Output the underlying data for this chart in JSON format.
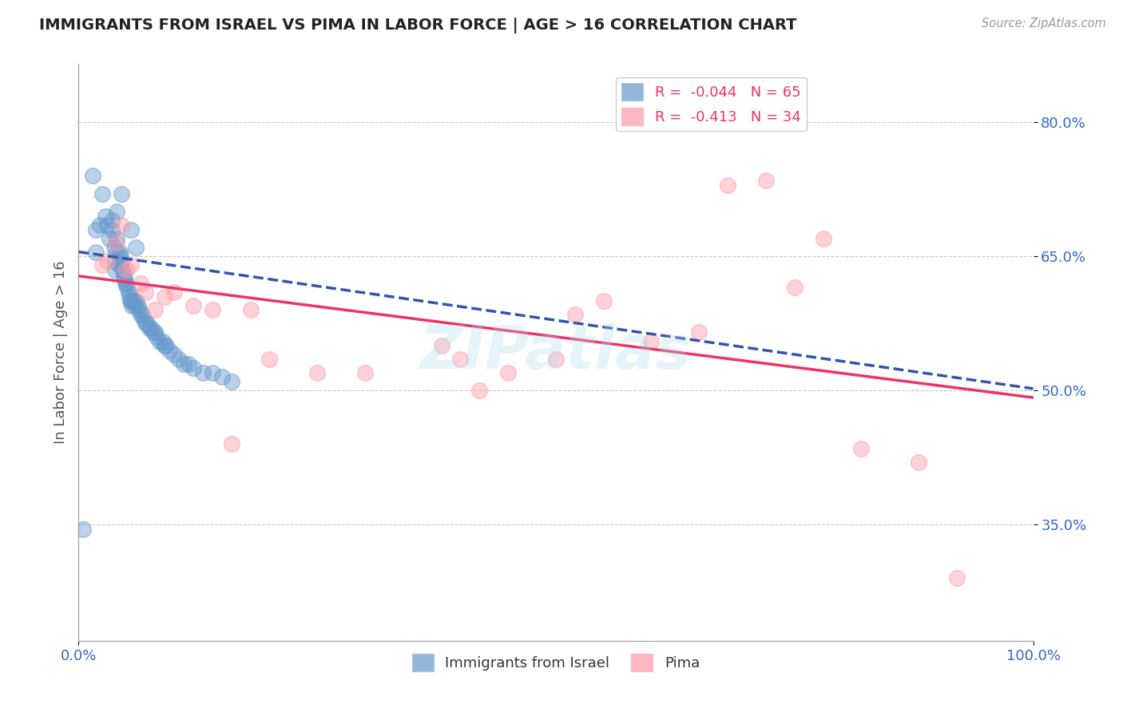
{
  "title": "IMMIGRANTS FROM ISRAEL VS PIMA IN LABOR FORCE | AGE > 16 CORRELATION CHART",
  "source_text": "Source: ZipAtlas.com",
  "ylabel": "In Labor Force | Age > 16",
  "xlim": [
    0.0,
    1.0
  ],
  "ylim": [
    0.22,
    0.865
  ],
  "yticks": [
    0.35,
    0.5,
    0.65,
    0.8
  ],
  "ytick_labels": [
    "35.0%",
    "50.0%",
    "65.0%",
    "80.0%"
  ],
  "xticks": [
    0.0,
    1.0
  ],
  "xtick_labels": [
    "0.0%",
    "100.0%"
  ],
  "israel_R": -0.044,
  "israel_N": 65,
  "pima_R": -0.413,
  "pima_N": 34,
  "israel_color": "#6699cc",
  "pima_color": "#ff99aa",
  "israel_line_color": "#3355aa",
  "pima_line_color": "#ee3366",
  "background_color": "#ffffff",
  "grid_color": "#bbbbbb",
  "title_color": "#222222",
  "axis_label_color": "#555555",
  "tick_label_color": "#3366cc",
  "legend_israel_label": "Immigrants from Israel",
  "legend_pima_label": "Pima",
  "watermark_text": "ZIPatlas",
  "israel_line_start": 0.655,
  "israel_line_end": 0.502,
  "pima_line_start": 0.628,
  "pima_line_end": 0.492,
  "israel_x": [
    0.005,
    0.015,
    0.018,
    0.022,
    0.025,
    0.028,
    0.03,
    0.032,
    0.035,
    0.037,
    0.038,
    0.038,
    0.04,
    0.04,
    0.042,
    0.043,
    0.044,
    0.045,
    0.046,
    0.047,
    0.048,
    0.049,
    0.05,
    0.051,
    0.052,
    0.053,
    0.054,
    0.055,
    0.056,
    0.057,
    0.058,
    0.059,
    0.06,
    0.062,
    0.063,
    0.065,
    0.067,
    0.068,
    0.07,
    0.072,
    0.074,
    0.076,
    0.078,
    0.08,
    0.082,
    0.085,
    0.088,
    0.09,
    0.092,
    0.095,
    0.1,
    0.105,
    0.11,
    0.115,
    0.12,
    0.13,
    0.14,
    0.15,
    0.16,
    0.018,
    0.035,
    0.04,
    0.045,
    0.055,
    0.06
  ],
  "israel_y": [
    0.345,
    0.74,
    0.655,
    0.685,
    0.72,
    0.695,
    0.685,
    0.67,
    0.69,
    0.66,
    0.645,
    0.635,
    0.67,
    0.655,
    0.64,
    0.655,
    0.65,
    0.645,
    0.635,
    0.63,
    0.625,
    0.62,
    0.62,
    0.615,
    0.61,
    0.605,
    0.6,
    0.6,
    0.595,
    0.6,
    0.6,
    0.595,
    0.6,
    0.595,
    0.59,
    0.585,
    0.585,
    0.58,
    0.575,
    0.575,
    0.57,
    0.57,
    0.565,
    0.565,
    0.56,
    0.555,
    0.555,
    0.55,
    0.55,
    0.545,
    0.54,
    0.535,
    0.53,
    0.53,
    0.525,
    0.52,
    0.52,
    0.515,
    0.51,
    0.68,
    0.68,
    0.7,
    0.72,
    0.68,
    0.66
  ],
  "pima_x": [
    0.025,
    0.03,
    0.04,
    0.045,
    0.05,
    0.055,
    0.065,
    0.07,
    0.08,
    0.09,
    0.1,
    0.12,
    0.14,
    0.16,
    0.18,
    0.2,
    0.25,
    0.3,
    0.38,
    0.4,
    0.42,
    0.45,
    0.5,
    0.52,
    0.55,
    0.6,
    0.65,
    0.68,
    0.72,
    0.75,
    0.78,
    0.82,
    0.88,
    0.92
  ],
  "pima_y": [
    0.64,
    0.645,
    0.665,
    0.685,
    0.635,
    0.64,
    0.62,
    0.61,
    0.59,
    0.605,
    0.61,
    0.595,
    0.59,
    0.44,
    0.59,
    0.535,
    0.52,
    0.52,
    0.55,
    0.535,
    0.5,
    0.52,
    0.535,
    0.585,
    0.6,
    0.555,
    0.565,
    0.73,
    0.735,
    0.615,
    0.67,
    0.435,
    0.42,
    0.29
  ]
}
